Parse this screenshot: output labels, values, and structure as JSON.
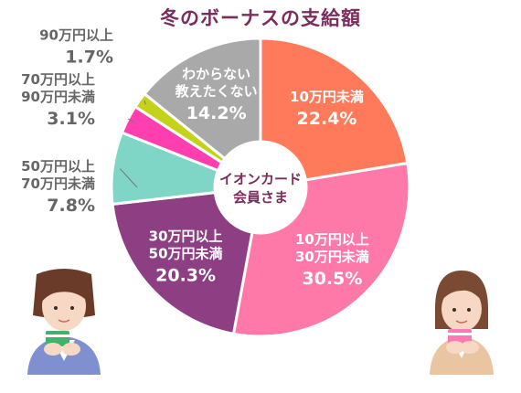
{
  "chart_data": {
    "type": "pie",
    "title": "冬のボーナスの支給額",
    "center_label": [
      "イオンカード",
      "会員さま"
    ],
    "slices": [
      {
        "lines": [
          "10万円未満"
        ],
        "value": 22.4,
        "pct": "22.4%",
        "color": "#ff7a5a",
        "label_pos": "inside"
      },
      {
        "lines": [
          "10万円以上",
          "30万円未満"
        ],
        "value": 30.5,
        "pct": "30.5%",
        "color": "#ff79a8",
        "label_pos": "inside"
      },
      {
        "lines": [
          "30万円以上",
          "50万円未満"
        ],
        "value": 20.3,
        "pct": "20.3%",
        "color": "#8e3f84",
        "label_pos": "inside"
      },
      {
        "lines": [
          "50万円以上",
          "70万円未満"
        ],
        "value": 7.8,
        "pct": "7.8%",
        "color": "#7fd6c6",
        "label_pos": "outside"
      },
      {
        "lines": [
          "70万円以上",
          "90万円未満"
        ],
        "value": 3.1,
        "pct": "3.1%",
        "color": "#ff3fb0",
        "label_pos": "outside"
      },
      {
        "lines": [
          "90万円以上"
        ],
        "value": 1.7,
        "pct": "1.7%",
        "color": "#c4d21a",
        "label_pos": "outside"
      },
      {
        "lines": [
          "わからない",
          "教えたくない"
        ],
        "value": 14.2,
        "pct": "14.2%",
        "color": "#a9a9a9",
        "label_pos": "inside"
      }
    ]
  }
}
